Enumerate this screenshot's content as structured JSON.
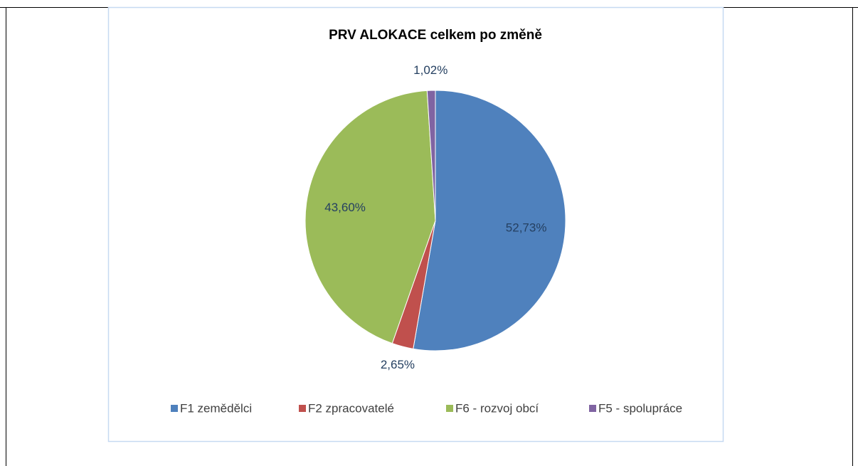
{
  "chart_data": {
    "type": "pie",
    "title": "PRV ALOKACE celkem po změně",
    "categories": [
      "F1 zemědělci",
      "F2 zpracovatelé",
      "F6 - rozvoj obcí",
      "F5 - spolupráce"
    ],
    "values": [
      52.73,
      2.65,
      43.6,
      1.02
    ],
    "value_labels": [
      "52,73%",
      "2,65%",
      "43,60%",
      "1,02%"
    ],
    "colors": [
      "#4f81bd",
      "#c0504d",
      "#9bbb59",
      "#8064a2"
    ],
    "legend": "bottom"
  }
}
